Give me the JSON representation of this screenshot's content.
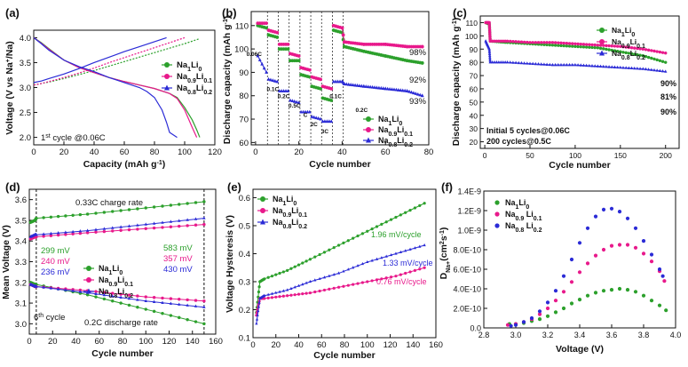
{
  "colors": {
    "green": "#2ca02c",
    "pink": "#e8198b",
    "blue": "#2b2bd6",
    "black": "#111111"
  },
  "legend_main": [
    {
      "name": "Na1Li0",
      "base": "Na",
      "s1": "1",
      "mid": "Li",
      "s2": "0"
    },
    {
      "name": "Na0.9Li0.1",
      "base": "Na",
      "s1": "0.9",
      "mid": "Li",
      "s2": "0.1"
    },
    {
      "name": "Na0.8Li0.2",
      "base": "Na",
      "s1": "0.8",
      "mid": "Li",
      "s2": "0.2"
    }
  ],
  "panels": {
    "a": {
      "label": "(a)",
      "xlabel": "Capacity (mAh g",
      "xlabel_sup": "-1",
      "xlabel_end": ")",
      "ylabel": "Voltage (V vs Na",
      "ylabel_sup": "+",
      "ylabel_end": "/Na)",
      "xticks": [
        "0",
        "20",
        "40",
        "60",
        "80",
        "100",
        "120"
      ],
      "yticks": [
        "2.0",
        "2.5",
        "3.0",
        "3.5",
        "4.0"
      ],
      "note_pre": "1",
      "note_sup": "st",
      "note_post": " cycle @0.06C"
    },
    "b": {
      "label": "(b)",
      "xlabel": "Cycle number",
      "ylabel": "Discharge capacity (mAh g",
      "ylabel_sup": "-1",
      "ylabel_end": ")",
      "xticks": [
        "0",
        "20",
        "40",
        "60",
        "80"
      ],
      "yticks": [
        "60",
        "70",
        "80",
        "90",
        "100",
        "110"
      ],
      "rates": [
        "0.06C",
        "0.1C",
        "0.2C",
        "0.5C",
        "C",
        "2C",
        "3C",
        "0.1C",
        "0.2C"
      ],
      "retention": [
        "98%",
        "92%",
        "93%"
      ]
    },
    "c": {
      "label": "(c)",
      "xlabel": "Cycle number",
      "ylabel": "Discharge capacity (mAh g",
      "ylabel_sup": "-1",
      "ylabel_end": ")",
      "xticks": [
        "0",
        "50",
        "100",
        "150",
        "200"
      ],
      "yticks": [
        "20",
        "30",
        "40",
        "50",
        "60",
        "70",
        "80",
        "90",
        "100",
        "110"
      ],
      "retention": [
        "90%",
        "81%",
        "90%"
      ],
      "note1": "Initial 5 cycles@0.06C",
      "note2": "200 cycles@0.5C"
    },
    "d": {
      "label": "(d)",
      "xlabel": "Cycle number",
      "ylabel": "Mean Voltage (V)",
      "xticks": [
        "0",
        "20",
        "40",
        "60",
        "80",
        "100",
        "120",
        "140",
        "160"
      ],
      "yticks": [
        "3.0",
        "3.1",
        "3.2",
        "3.3",
        "3.4",
        "3.5",
        "3.6"
      ],
      "charge_label": "0.33C charge rate",
      "discharge_label": "0.2C discharge rate",
      "cycle6_pre": "6",
      "cycle6_sup": "th",
      "cycle6_post": " cycle",
      "left_mv": [
        "299 mV",
        "240 mV",
        "236 mV"
      ],
      "right_mv": [
        "583 mV",
        "357 mV",
        "430 mV"
      ]
    },
    "e": {
      "label": "(e)",
      "xlabel": "Cycle number",
      "ylabel": "Voltage Hysteresis (V)",
      "xticks": [
        "0",
        "20",
        "40",
        "60",
        "80",
        "100",
        "120",
        "140",
        "160"
      ],
      "yticks": [
        "0.1",
        "0.2",
        "0.3",
        "0.4",
        "0.5",
        "0.6"
      ],
      "slopes": [
        "1.96 mV/cycle",
        "1.33 mV/cycle",
        "0.76 mV/cycle"
      ]
    },
    "f": {
      "label": "(f)",
      "xlabel": "Voltage (V)",
      "ylabel": "D",
      "ylabel_sub": "Na+",
      "ylabel_end": "(cm",
      "ylabel_sup": "2",
      "ylabel_end2": "s",
      "ylabel_sup2": "-1",
      "ylabel_end3": ")",
      "xticks": [
        "2.8",
        "3.0",
        "3.2",
        "3.4",
        "3.6",
        "3.8",
        "4.0"
      ],
      "yticks": [
        "0.0",
        "2.0E-10",
        "4.0E-10",
        "6.0E-10",
        "8.0E-10",
        "1.0E-9",
        "1.2E-9",
        "1.4E-9"
      ],
      "legend": [
        {
          "base": "Na",
          "s1": "1",
          "mid": "Li",
          "s2": "0"
        },
        {
          "base": "Na",
          "s1": "0.9",
          "mid": " Li",
          "s2": "0.1"
        },
        {
          "base": "Na",
          "s1": "0.8",
          "mid": " Li",
          "s2": "0.2"
        }
      ]
    }
  },
  "chart_data": [
    {
      "id": "a",
      "type": "line",
      "title": "1st cycle @0.06C",
      "xlabel": "Capacity (mAh g-1)",
      "ylabel": "Voltage (V vs Na+/Na)",
      "xlim": [
        0,
        120
      ],
      "ylim": [
        1.85,
        4.15
      ],
      "series": [
        {
          "name": "Na1Li0 charge",
          "x": [
            0,
            5,
            10,
            20,
            30,
            40,
            50,
            60,
            70,
            80,
            90,
            100,
            110
          ],
          "y": [
            3.05,
            3.08,
            3.11,
            3.18,
            3.26,
            3.34,
            3.43,
            3.52,
            3.61,
            3.7,
            3.79,
            3.88,
            3.98
          ]
        },
        {
          "name": "Na1Li0 discharge",
          "x": [
            0,
            5,
            10,
            20,
            30,
            40,
            50,
            60,
            70,
            80,
            90,
            95,
            100,
            105,
            108,
            110
          ],
          "y": [
            4.0,
            3.9,
            3.78,
            3.55,
            3.4,
            3.3,
            3.2,
            3.12,
            3.05,
            2.98,
            2.88,
            2.8,
            2.6,
            2.35,
            2.15,
            2.0
          ]
        },
        {
          "name": "Na0.9Li0.1 charge",
          "x": [
            0,
            5,
            10,
            20,
            30,
            40,
            50,
            60,
            70,
            80,
            90,
            100
          ],
          "y": [
            3.05,
            3.08,
            3.12,
            3.2,
            3.29,
            3.39,
            3.5,
            3.6,
            3.7,
            3.8,
            3.9,
            4.0
          ]
        },
        {
          "name": "Na0.9Li0.1 discharge",
          "x": [
            0,
            5,
            10,
            20,
            30,
            40,
            50,
            60,
            70,
            80,
            90,
            95,
            100,
            105,
            108
          ],
          "y": [
            4.0,
            3.89,
            3.77,
            3.55,
            3.4,
            3.3,
            3.2,
            3.12,
            3.05,
            2.98,
            2.88,
            2.78,
            2.55,
            2.2,
            2.0
          ]
        },
        {
          "name": "Na0.8Li0.2 charge",
          "x": [
            0,
            5,
            10,
            20,
            30,
            40,
            50,
            60,
            70,
            80,
            88
          ],
          "y": [
            3.1,
            3.13,
            3.18,
            3.27,
            3.38,
            3.5,
            3.61,
            3.72,
            3.82,
            3.92,
            4.0
          ]
        },
        {
          "name": "Na0.8Li0.2 discharge",
          "x": [
            0,
            5,
            10,
            20,
            30,
            40,
            50,
            60,
            70,
            75,
            80,
            85,
            88,
            90,
            95
          ],
          "y": [
            4.0,
            3.88,
            3.75,
            3.55,
            3.42,
            3.32,
            3.2,
            3.1,
            3.0,
            2.92,
            2.8,
            2.55,
            2.3,
            2.1,
            2.0
          ]
        }
      ]
    },
    {
      "id": "b",
      "type": "scatter",
      "xlabel": "Cycle number",
      "ylabel": "Discharge capacity (mAh g-1)",
      "xlim": [
        -2,
        80
      ],
      "ylim": [
        59,
        116
      ],
      "segment_boundaries": [
        5,
        10,
        15,
        20,
        25,
        30,
        35,
        40
      ],
      "rates": [
        "0.06C",
        "0.1C",
        "0.2C",
        "0.5C",
        "C",
        "2C",
        "3C",
        "0.1C",
        "0.2C"
      ],
      "series": [
        {
          "name": "Na1Li0",
          "x": [
            1,
            5,
            6,
            10,
            11,
            15,
            16,
            20,
            21,
            25,
            26,
            30,
            31,
            35,
            36,
            40,
            41,
            50,
            60,
            70,
            77
          ],
          "y": [
            110,
            109,
            106,
            105,
            100,
            100,
            95,
            95,
            89,
            88,
            84,
            83,
            79,
            78,
            108,
            107,
            101,
            99,
            97,
            95,
            94
          ]
        },
        {
          "name": "Na0.9Li0.1",
          "x": [
            1,
            5,
            6,
            10,
            11,
            15,
            16,
            20,
            21,
            25,
            26,
            30,
            31,
            35,
            36,
            40,
            41,
            50,
            60,
            70,
            77
          ],
          "y": [
            111,
            111,
            108,
            107,
            102,
            102,
            98,
            97,
            92,
            91,
            88,
            87,
            84,
            83,
            110,
            109,
            103,
            102,
            102,
            101,
            101
          ]
        },
        {
          "name": "Na0.8Li0.2",
          "x": [
            1,
            5,
            6,
            10,
            11,
            15,
            16,
            20,
            21,
            25,
            26,
            30,
            31,
            35,
            36,
            40,
            41,
            50,
            60,
            70,
            77
          ],
          "y": [
            97,
            90,
            87,
            86,
            82,
            82,
            78,
            77,
            73,
            73,
            71,
            70,
            69,
            69,
            86,
            86,
            85,
            84,
            83,
            82,
            80
          ]
        }
      ],
      "retention": {
        "Na0.9Li0.1": "98%",
        "Na1Li0": "92%",
        "Na0.8Li0.2": "93%"
      }
    },
    {
      "id": "c",
      "type": "scatter",
      "xlabel": "Cycle number",
      "ylabel": "Discharge capacity (mAh g-1)",
      "xlim": [
        -5,
        215
      ],
      "ylim": [
        15,
        115
      ],
      "series": [
        {
          "name": "Na1Li0",
          "x": [
            1,
            5,
            6,
            25,
            50,
            75,
            100,
            125,
            150,
            175,
            200
          ],
          "y": [
            110,
            109,
            96,
            95,
            94,
            93,
            92,
            91,
            88,
            85,
            80
          ]
        },
        {
          "name": "Na0.9Li0.1",
          "x": [
            1,
            5,
            6,
            25,
            50,
            75,
            100,
            125,
            150,
            175,
            200
          ],
          "y": [
            110,
            110,
            96,
            96,
            95,
            95,
            94,
            93,
            92,
            90,
            87
          ]
        },
        {
          "name": "Na0.8Li0.2",
          "x": [
            1,
            5,
            6,
            25,
            50,
            75,
            100,
            125,
            150,
            175,
            200
          ],
          "y": [
            96,
            90,
            80,
            80,
            79,
            78,
            78,
            77,
            76,
            75,
            73
          ]
        }
      ],
      "retention": {
        "Na0.9Li0.1": "90%",
        "Na1Li0": "81%",
        "Na0.8Li0.2": "90%"
      }
    },
    {
      "id": "d",
      "type": "scatter",
      "xlabel": "Cycle number",
      "ylabel": "Mean Voltage (V)",
      "xlim": [
        0,
        160
      ],
      "ylim": [
        2.95,
        3.65
      ],
      "series": [
        {
          "name": "Na1Li0 charge",
          "x": [
            1,
            5,
            6,
            50,
            100,
            150
          ],
          "y": [
            3.49,
            3.5,
            3.51,
            3.53,
            3.56,
            3.59
          ]
        },
        {
          "name": "Na0.9Li0.1 charge",
          "x": [
            1,
            5,
            6,
            50,
            100,
            150
          ],
          "y": [
            3.41,
            3.42,
            3.42,
            3.44,
            3.46,
            3.48
          ]
        },
        {
          "name": "Na0.8Li0.2 charge",
          "x": [
            1,
            5,
            6,
            50,
            100,
            150
          ],
          "y": [
            3.42,
            3.43,
            3.43,
            3.45,
            3.48,
            3.51
          ]
        },
        {
          "name": "Na1Li0 discharge",
          "x": [
            1,
            5,
            6,
            50,
            100,
            150
          ],
          "y": [
            3.2,
            3.19,
            3.19,
            3.14,
            3.07,
            3.0
          ]
        },
        {
          "name": "Na0.9Li0.1 discharge",
          "x": [
            1,
            5,
            6,
            50,
            100,
            150
          ],
          "y": [
            3.19,
            3.18,
            3.18,
            3.16,
            3.13,
            3.11
          ]
        },
        {
          "name": "Na0.8Li0.2 discharge",
          "x": [
            1,
            5,
            6,
            50,
            100,
            150
          ],
          "y": [
            3.19,
            3.18,
            3.18,
            3.15,
            3.11,
            3.08
          ]
        }
      ],
      "annotations": {
        "6th_cycle_mV": {
          "Na1Li0": 299,
          "Na0.9Li0.1": 240,
          "Na0.8Li0.2": 236
        },
        "last_cycle_mV": {
          "Na1Li0": 583,
          "Na0.9Li0.1": 357,
          "Na0.8Li0.2": 430
        }
      }
    },
    {
      "id": "e",
      "type": "scatter",
      "xlabel": "Cycle number",
      "ylabel": "Voltage Hysteresis (V)",
      "xlim": [
        0,
        160
      ],
      "ylim": [
        0.1,
        0.63
      ],
      "series": [
        {
          "name": "Na1Li0",
          "x": [
            3,
            6,
            10,
            30,
            50,
            75,
            100,
            125,
            150
          ],
          "y": [
            0.19,
            0.3,
            0.31,
            0.34,
            0.38,
            0.43,
            0.48,
            0.53,
            0.58
          ]
        },
        {
          "name": "Na0.9Li0.1",
          "x": [
            3,
            6,
            10,
            30,
            50,
            75,
            100,
            125,
            150
          ],
          "y": [
            0.18,
            0.24,
            0.24,
            0.25,
            0.26,
            0.28,
            0.3,
            0.32,
            0.35
          ]
        },
        {
          "name": "Na0.8Li0.2",
          "x": [
            3,
            6,
            10,
            30,
            50,
            75,
            100,
            125,
            150
          ],
          "y": [
            0.15,
            0.24,
            0.25,
            0.27,
            0.3,
            0.33,
            0.37,
            0.4,
            0.43
          ]
        }
      ],
      "slopes": {
        "Na1Li0": "1.96 mV/cycle",
        "Na0.8Li0.2": "1.33 mV/cycle",
        "Na0.9Li0.1": "0.76 mV/cycle"
      }
    },
    {
      "id": "f",
      "type": "scatter",
      "xlabel": "Voltage (V)",
      "ylabel": "D_Na+ (cm^2 s^-1)",
      "xlim": [
        2.8,
        4.0
      ],
      "ylim": [
        0,
        1.4e-09
      ],
      "series": [
        {
          "name": "Na1Li0",
          "x": [
            2.96,
            3.0,
            3.05,
            3.1,
            3.15,
            3.2,
            3.25,
            3.3,
            3.35,
            3.4,
            3.45,
            3.5,
            3.55,
            3.6,
            3.65,
            3.7,
            3.75,
            3.8,
            3.85,
            3.9,
            3.94
          ],
          "y": [
            4e-11,
            4e-11,
            5e-11,
            7e-11,
            9e-11,
            1.2e-10,
            1.6e-10,
            2e-10,
            2.5e-10,
            2.9e-10,
            3.3e-10,
            3.6e-10,
            3.8e-10,
            3.9e-10,
            4e-10,
            3.9e-10,
            3.7e-10,
            3.3e-10,
            2.8e-10,
            2.3e-10,
            1.8e-10
          ]
        },
        {
          "name": "Na0.9Li0.1",
          "x": [
            2.95,
            3.0,
            3.05,
            3.1,
            3.15,
            3.2,
            3.25,
            3.3,
            3.35,
            3.4,
            3.45,
            3.5,
            3.55,
            3.6,
            3.65,
            3.7,
            3.75,
            3.8,
            3.85,
            3.9,
            3.93
          ],
          "y": [
            3e-11,
            4e-11,
            6e-11,
            9e-11,
            1.4e-10,
            2e-10,
            2.8e-10,
            3.7e-10,
            4.7e-10,
            5.7e-10,
            6.6e-10,
            7.4e-10,
            8e-10,
            8.4e-10,
            8.5e-10,
            8.5e-10,
            8.2e-10,
            7.6e-10,
            6.8e-10,
            5.8e-10,
            4.8e-10
          ]
        },
        {
          "name": "Na0.8Li0.2",
          "x": [
            2.97,
            3.0,
            3.05,
            3.1,
            3.15,
            3.2,
            3.25,
            3.3,
            3.35,
            3.4,
            3.45,
            3.5,
            3.55,
            3.6,
            3.65,
            3.7,
            3.75,
            3.8,
            3.85,
            3.9,
            3.92
          ],
          "y": [
            2e-11,
            3e-11,
            6e-11,
            1e-10,
            1.7e-10,
            2.6e-10,
            3.8e-10,
            5.3e-10,
            7e-10,
            8.7e-10,
            1.02e-09,
            1.14e-09,
            1.21e-09,
            1.22e-09,
            1.19e-09,
            1.12e-09,
            1.02e-09,
            8.9e-10,
            7.5e-10,
            6e-10,
            5.3e-10
          ]
        }
      ]
    }
  ]
}
